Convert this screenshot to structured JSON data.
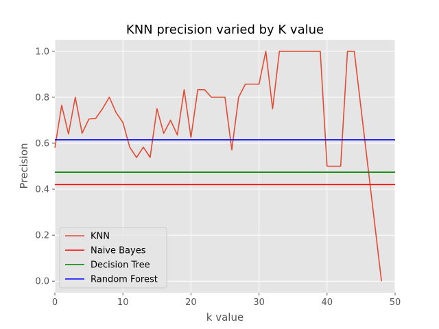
{
  "chart_data": {
    "type": "line",
    "title": "KNN precision varied by K value",
    "xlabel": "k value",
    "ylabel": "Precision",
    "xlim": [
      0,
      50
    ],
    "ylim": [
      -0.05,
      1.05
    ],
    "x_ticks": [
      0,
      10,
      20,
      30,
      40,
      50
    ],
    "y_ticks": [
      0.0,
      0.2,
      0.4,
      0.6,
      0.8,
      1.0
    ],
    "x_tick_labels": [
      "0",
      "10",
      "20",
      "30",
      "40",
      "50"
    ],
    "y_tick_labels": [
      "0.0",
      "0.2",
      "0.4",
      "0.6",
      "0.8",
      "1.0"
    ],
    "grid": true,
    "legend_position": "bottom-left",
    "series": [
      {
        "name": "KNN",
        "color": "#E24A33",
        "kind": "line",
        "x": [
          0,
          1,
          2,
          3,
          4,
          5,
          6,
          7,
          8,
          9,
          10,
          11,
          12,
          13,
          14,
          15,
          16,
          17,
          18,
          19,
          20,
          21,
          22,
          23,
          24,
          25,
          26,
          27,
          28,
          29,
          30,
          31,
          32,
          33,
          34,
          35,
          36,
          37,
          38,
          39,
          40,
          41,
          42,
          43,
          44,
          45,
          46,
          47,
          48
        ],
        "y": [
          0.58,
          0.765,
          0.64,
          0.8,
          0.643,
          0.705,
          0.708,
          0.75,
          0.8,
          0.733,
          0.69,
          0.583,
          0.538,
          0.583,
          0.538,
          0.75,
          0.643,
          0.7,
          0.636,
          0.833,
          0.625,
          0.833,
          0.833,
          0.8,
          0.8,
          0.8,
          0.571,
          0.8,
          0.857,
          0.857,
          0.857,
          1.0,
          0.75,
          1.0,
          1.0,
          1.0,
          1.0,
          1.0,
          1.0,
          1.0,
          0.5,
          0.5,
          0.5,
          1.0,
          1.0,
          0.75,
          0.5,
          0.25,
          0.0
        ]
      },
      {
        "name": "Naive Bayes",
        "color": "#FF0000",
        "kind": "hline",
        "y": 0.42
      },
      {
        "name": "Decision Tree",
        "color": "#008000",
        "kind": "hline",
        "y": 0.474
      },
      {
        "name": "Random Forest",
        "color": "#0000FF",
        "kind": "hline",
        "y": 0.615
      }
    ]
  }
}
